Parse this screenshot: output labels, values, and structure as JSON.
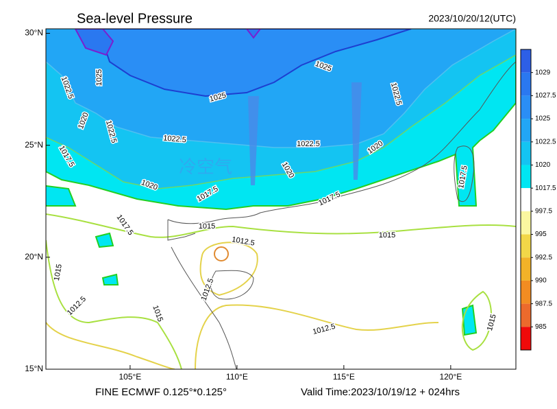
{
  "map": {
    "title": "Sea-level Pressure",
    "init_time": "2023/10/20/12(UTC)",
    "footer_left": "FINE ECMWF 0.125°*0.125°",
    "footer_right": "Valid Time:2023/10/19/12 + 024hrs",
    "annotation": "冷空气",
    "xlim": [
      101.06,
      123.05
    ],
    "ylim": [
      15,
      30.2
    ],
    "xticks": [
      {
        "value": 105,
        "label": "105°E"
      },
      {
        "value": 110,
        "label": "110°E"
      },
      {
        "value": 115,
        "label": "115°E"
      },
      {
        "value": 120,
        "label": "120°E"
      }
    ],
    "yticks": [
      {
        "value": 15,
        "label": "15°N"
      },
      {
        "value": 20,
        "label": "20°N"
      },
      {
        "value": 25,
        "label": "25°N"
      },
      {
        "value": 30,
        "label": "30°N"
      }
    ],
    "colorbar": {
      "ticks": [
        1029,
        1027.5,
        1025,
        1022.5,
        1020,
        1017.5,
        997.5,
        995,
        992.5,
        990,
        987.5,
        985
      ],
      "colors": [
        "#2d5fe6",
        "#2a78f0",
        "#2a8ef5",
        "#22a6f5",
        "#14c4f2",
        "#00e6f2",
        "#ffffff",
        "#fbf7a0",
        "#f2d748",
        "#f2b228",
        "#f28c22",
        "#ec6a2c",
        "#f00a0a"
      ]
    },
    "contour_labels": [
      1022.5,
      1025,
      1020,
      1022.5,
      1017.5,
      1025,
      1022.5,
      1020,
      1017.5,
      1025,
      1022.5,
      1022.5,
      1020,
      1020,
      1017.5,
      1017.5,
      1017.5,
      1015,
      1012.5,
      1015,
      1015,
      1012.5,
      1015,
      1012.5,
      1012.5,
      1015
    ]
  }
}
